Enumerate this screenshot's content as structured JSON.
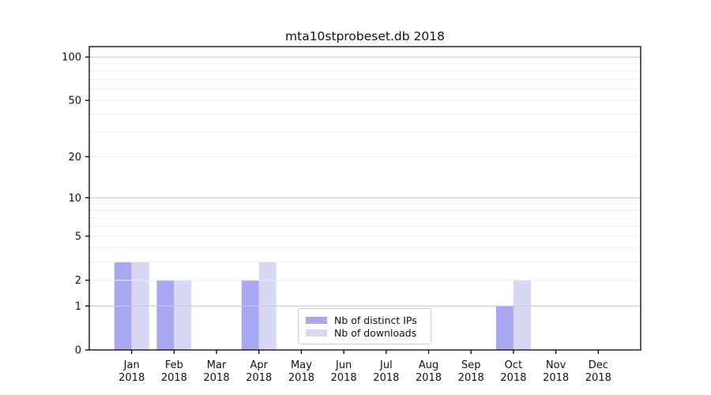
{
  "chart_data": {
    "type": "bar",
    "title": "mta10stprobeset.db 2018",
    "x": {
      "months": [
        "Jan",
        "Feb",
        "Mar",
        "Apr",
        "May",
        "Jun",
        "Jul",
        "Aug",
        "Sep",
        "Oct",
        "Nov",
        "Dec"
      ],
      "year": "2018"
    },
    "series": [
      {
        "name": "Nb of distinct IPs",
        "color": "#a8a8f0",
        "values": [
          3,
          2,
          0,
          2,
          0,
          0,
          0,
          0,
          0,
          1,
          0,
          0
        ]
      },
      {
        "name": "Nb of downloads",
        "color": "#d8d8f5",
        "values": [
          3,
          2,
          0,
          3,
          0,
          0,
          0,
          0,
          0,
          2,
          0,
          0
        ]
      }
    ],
    "y_axis": {
      "scale": "log1p",
      "min": 0,
      "max": 118,
      "tick_labels": [
        0,
        1,
        2,
        5,
        10,
        20,
        50,
        100
      ],
      "major_gridlines": [
        1,
        10,
        100
      ],
      "minor_gridlines": [
        2,
        3,
        4,
        5,
        6,
        7,
        8,
        9,
        20,
        30,
        40,
        50,
        60,
        70,
        80,
        90
      ]
    },
    "legend": {
      "position": "lower-center"
    },
    "grid": true,
    "colors": {
      "axis": "#000000",
      "tick_text": "#111111",
      "major_grid": "#cccccc",
      "minor_grid": "#eeeeee",
      "legend_border": "#cccccc",
      "background": "#ffffff"
    }
  }
}
